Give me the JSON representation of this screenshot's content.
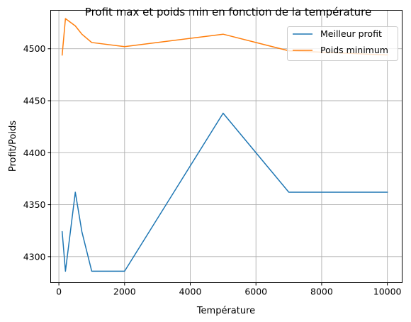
{
  "chart_data": {
    "type": "line",
    "title": "Profit max et poids min en fonction de la température",
    "xlabel": "Température",
    "ylabel": "Profit/Poids",
    "xlim": [
      -250,
      10450
    ],
    "ylim": [
      4275,
      4537
    ],
    "xticks": [
      0,
      2000,
      4000,
      6000,
      8000,
      10000
    ],
    "yticks": [
      4300,
      4350,
      4400,
      4450,
      4500
    ],
    "grid": true,
    "legend_position": "top-right",
    "series": [
      {
        "name": "Meilleur profit",
        "color": "#1f77b4",
        "x": [
          100,
          200,
          500,
          700,
          1000,
          2000,
          5000,
          7000,
          10000
        ],
        "y": [
          4324,
          4286,
          4362,
          4324,
          4286,
          4286,
          4438,
          4362,
          4362
        ]
      },
      {
        "name": "Poids minimum",
        "color": "#ff7f0e",
        "x": [
          100,
          200,
          500,
          700,
          1000,
          2000,
          5000,
          7000,
          10000
        ],
        "y": [
          4494,
          4529,
          4522,
          4514,
          4506,
          4502,
          4514,
          4498,
          4494
        ]
      }
    ]
  }
}
